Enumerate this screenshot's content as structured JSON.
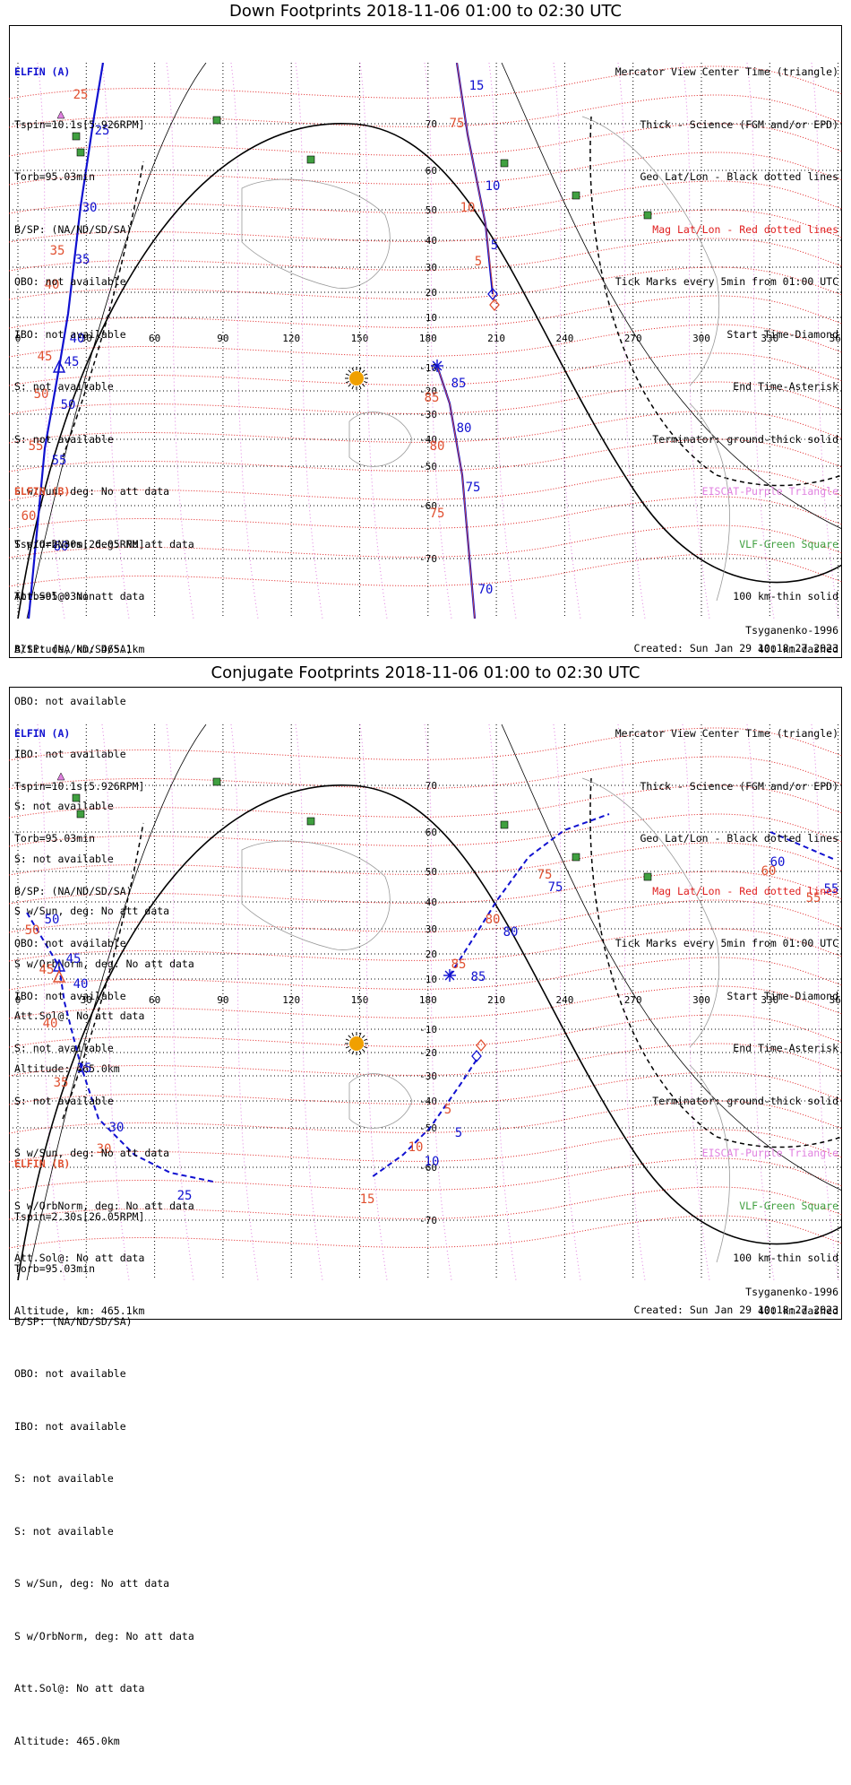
{
  "colors": {
    "blue": "#1010d0",
    "red": "#e05030",
    "black": "#000000",
    "pink": "#e080e0",
    "green": "#40a040",
    "sun": "#f0a000"
  },
  "panels": [
    {
      "title": "Down Footprints 2018-11-06 01:00 to 02:30 UTC",
      "elfin_a_label": "ELFIN (A)",
      "elfin_a_lines": [
        "Tspin=10.1s[5.926RPM]",
        "Torb=95.03min",
        "B/SP: (NA/ND/SD/SA)",
        "OBO: not available",
        "IBO: not available",
        "S: not available",
        "S: not available",
        "S w/Sun, deg: No att data",
        "S w/OrbNorm, deg: No att data",
        "Att.Sol@: No att data",
        "Altitude, km: 465.1km"
      ],
      "elfin_b_label": "ELFIN (B)",
      "elfin_b_lines": [
        "Tspin=2.30s[26.05RPM]",
        "Torb=95.03min",
        "B/SP: (NA/ND/SD/SA)",
        "OBO: not available",
        "IBO: not available",
        "S: not available",
        "S: not available",
        "S w/Sun, deg: No att data",
        "S w/OrbNorm, deg: No att data",
        "Att.Sol@: No att data",
        "Altitude: 465.0km"
      ],
      "legend": [
        {
          "text": "Mercator View Center Time (triangle)",
          "color": "black"
        },
        {
          "text": "Thick - Science (FGM and/or EPD)",
          "color": "black"
        },
        {
          "text": "Geo Lat/Lon - Black dotted lines",
          "color": "black"
        },
        {
          "text": "Mag Lat/Lon - Red dotted lines",
          "color": "redline"
        },
        {
          "text": "Tick Marks every 5min from 01:00 UTC",
          "color": "black"
        },
        {
          "text": "Start Time-Diamond",
          "color": "black"
        },
        {
          "text": "End Time-Asterisk",
          "color": "black"
        },
        {
          "text": "Terminator: ground-thick solid",
          "color": "black"
        },
        {
          "text": "EISCAT-Purple Triangle",
          "color": "pink"
        },
        {
          "text": "VLF-Green Square",
          "color": "green"
        },
        {
          "text": "100 km-thin solid",
          "color": "black"
        },
        {
          "text": "400 km-dashed",
          "color": "black"
        }
      ],
      "model": "Tsyganenko-1996",
      "created": "Created: Sun Jan 29 10:18:27 2023",
      "lon_labels": [
        "0",
        "30",
        "60",
        "90",
        "120",
        "150",
        "180",
        "210",
        "240",
        "270",
        "300",
        "330",
        "360"
      ],
      "lat_labels": [
        "70",
        "60",
        "50",
        "40",
        "30",
        "20",
        "10",
        "-10",
        "-20",
        "-30",
        "-40",
        "-50",
        "-60",
        "-70"
      ],
      "tick_labels_blue": [
        "15",
        "10",
        "5",
        "25",
        "30",
        "35",
        "40",
        "45",
        "50",
        "55",
        "60",
        "70",
        "75",
        "80",
        "85"
      ],
      "tick_labels_red": [
        "75",
        "10",
        "5",
        "25",
        "35",
        "40",
        "45",
        "50",
        "55",
        "60",
        "75",
        "80",
        "85"
      ]
    },
    {
      "title": "Conjugate Footprints 2018-11-06 01:00 to 02:30 UTC",
      "elfin_a_label": "ELFIN (A)",
      "elfin_a_lines": [
        "Tspin=10.1s[5.926RPM]",
        "Torb=95.03min",
        "B/SP: (NA/ND/SD/SA)",
        "OBO: not available",
        "IBO: not available",
        "S: not available",
        "S: not available",
        "S w/Sun, deg: No att data",
        "S w/OrbNorm, deg: No att data",
        "Att.Sol@: No att data",
        "Altitude, km: 465.1km"
      ],
      "elfin_b_label": "ELFIN (B)",
      "elfin_b_lines": [
        "Tspin=2.30s[26.05RPM]",
        "Torb=95.03min",
        "B/SP: (NA/ND/SD/SA)",
        "OBO: not available",
        "IBO: not available",
        "S: not available",
        "S: not available",
        "S w/Sun, deg: No att data",
        "S w/OrbNorm, deg: No att data",
        "Att.Sol@: No att data",
        "Altitude: 465.0km"
      ],
      "legend": [
        {
          "text": "Mercator View Center Time (triangle)",
          "color": "black"
        },
        {
          "text": "Thick - Science (FGM and/or EPD)",
          "color": "black"
        },
        {
          "text": "Geo Lat/Lon - Black dotted lines",
          "color": "black"
        },
        {
          "text": "Mag Lat/Lon - Red dotted lines",
          "color": "redline"
        },
        {
          "text": "Tick Marks every 5min from 01:00 UTC",
          "color": "black"
        },
        {
          "text": "Start Time-Diamond",
          "color": "black"
        },
        {
          "text": "End Time-Asterisk",
          "color": "black"
        },
        {
          "text": "Terminator: ground-thick solid",
          "color": "black"
        },
        {
          "text": "EISCAT-Purple Triangle",
          "color": "pink"
        },
        {
          "text": "VLF-Green Square",
          "color": "green"
        },
        {
          "text": "100 km-thin solid",
          "color": "black"
        },
        {
          "text": "400 km-dashed",
          "color": "black"
        }
      ],
      "model": "Tsyganenko-1996",
      "created": "Created: Sun Jan 29 10:18:27 2023",
      "lon_labels": [
        "0",
        "30",
        "60",
        "90",
        "120",
        "150",
        "180",
        "210",
        "240",
        "270",
        "300",
        "330",
        "360"
      ],
      "lat_labels": [
        "70",
        "60",
        "50",
        "40",
        "30",
        "20",
        "10",
        "-10",
        "-20",
        "-30",
        "-40",
        "-50",
        "-60",
        "-70"
      ],
      "tick_labels_blue": [
        "75",
        "80",
        "85",
        "5",
        "10",
        "50",
        "45",
        "40",
        "35",
        "30",
        "25",
        "60",
        "55"
      ],
      "tick_labels_red": [
        "75",
        "80",
        "85",
        "5",
        "10",
        "15",
        "50",
        "45",
        "40",
        "35",
        "30",
        "60",
        "55"
      ]
    }
  ]
}
